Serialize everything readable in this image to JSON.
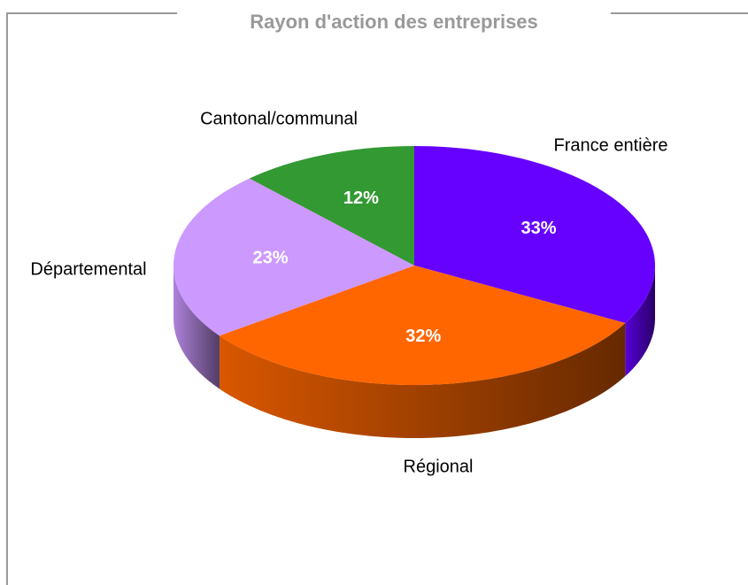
{
  "chart_data": {
    "type": "pie",
    "title": "Rayon d'action des entreprises",
    "categories": [
      "France entière",
      "Régional",
      "Départemental",
      "Cantonal/communal"
    ],
    "values": [
      33,
      32,
      23,
      12
    ],
    "value_labels": [
      "33%",
      "32%",
      "23%",
      "12%"
    ],
    "colors": [
      "#6600ff",
      "#ff6600",
      "#cc99ff",
      "#339933"
    ]
  }
}
